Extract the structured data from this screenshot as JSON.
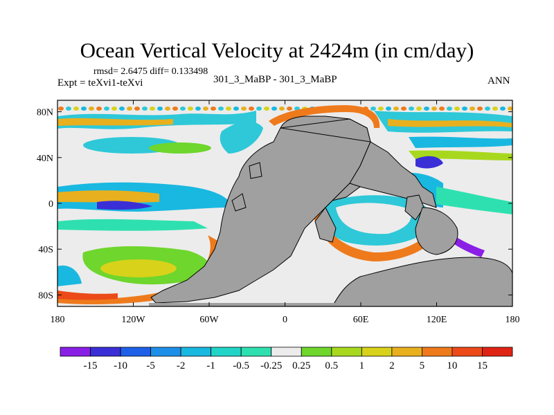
{
  "title": "Ocean Vertical Velocity at 2424m (in cm/day)",
  "stats": "rmsd= 2.6475 diff= 0.133498",
  "expt": "Expt = teXvi1-teXvi",
  "case": "301_3_MaBP - 301_3_MaBP",
  "season": "ANN",
  "lat_ticks": [
    "80N",
    "40N",
    "0",
    "40S",
    "80S"
  ],
  "lon_ticks": [
    "180",
    "120W",
    "60W",
    "0",
    "60E",
    "120E",
    "180"
  ],
  "colorbar": {
    "labels": [
      "-15",
      "-10",
      "-5",
      "-2",
      "-1",
      "-0.5",
      "-0.25",
      "0.25",
      "0.5",
      "1",
      "2",
      "5",
      "10",
      "15"
    ],
    "colors": [
      "#8a1fe6",
      "#3a2fd6",
      "#1f60e8",
      "#1e8fe8",
      "#19b8e0",
      "#22d4c8",
      "#2ee0b0",
      "#ececec",
      "#6ed62c",
      "#a8d81e",
      "#d8d21a",
      "#e8b01e",
      "#ee7a1c",
      "#ec4a18",
      "#e02414"
    ]
  },
  "colors": {
    "land": "#a0a0a0",
    "neutral": "#ececec"
  }
}
